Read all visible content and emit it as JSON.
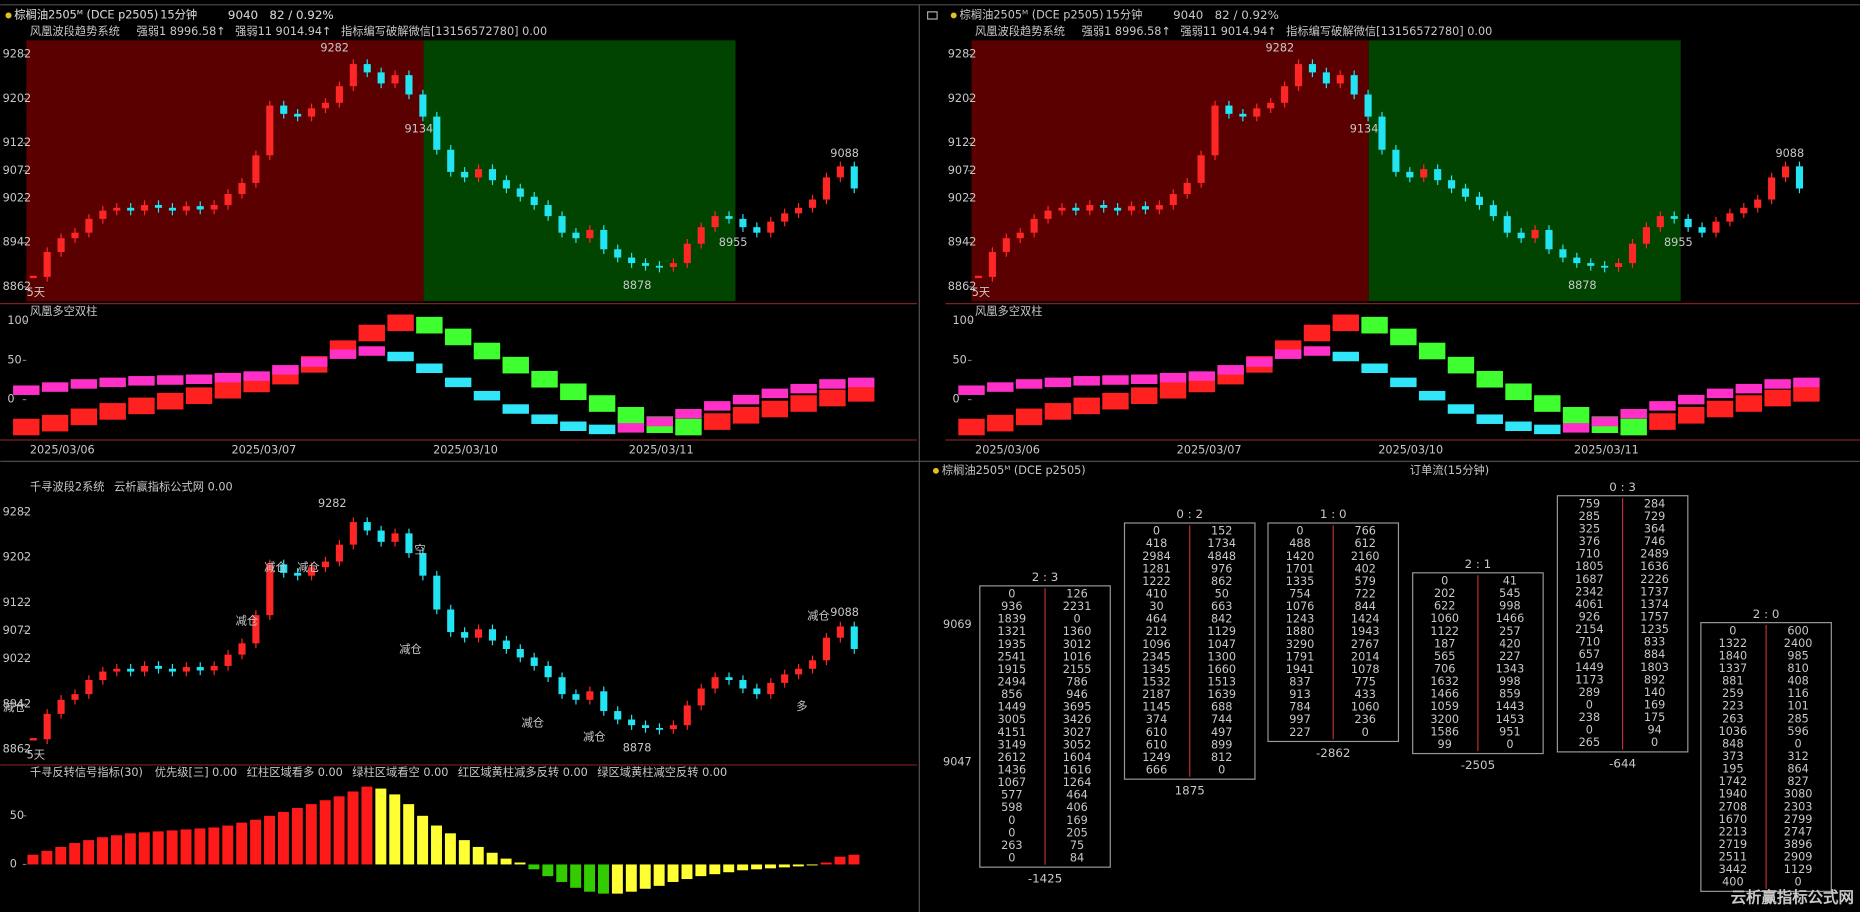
{
  "symbol": "棕榈油2505ᴹ (DCE p2505)",
  "period": "15分钟",
  "price": 9040,
  "change": "82 / 0.92%",
  "price_chart": {
    "type": "candlestick",
    "up_color": "#ff2626",
    "down_color": "#22e4f2",
    "closes": [
      8880,
      8925,
      8950,
      8960,
      8985,
      9000,
      9005,
      9000,
      9010,
      9005,
      9000,
      9008,
      9002,
      9010,
      9030,
      9050,
      9100,
      9190,
      9175,
      9170,
      9185,
      9195,
      9225,
      9265,
      9250,
      9230,
      9245,
      9210,
      9170,
      9110,
      9070,
      9060,
      9075,
      9055,
      9040,
      9025,
      9010,
      8990,
      8960,
      8950,
      8965,
      8930,
      8915,
      8905,
      8900,
      8898,
      8905,
      8940,
      8970,
      8990,
      8985,
      8970,
      8960,
      8980,
      8995,
      9005,
      9020,
      9060,
      9080,
      9040
    ],
    "ylim": [
      8836,
      9308
    ],
    "yticks": [
      9282,
      9202,
      9122,
      9072,
      9022,
      8942,
      8862
    ]
  },
  "trend_indicator": {
    "name": "风凰波段趋势系统",
    "items": [
      {
        "text": "强弱1 8996.58↑",
        "color": "#f0f0f0"
      },
      {
        "text": "强弱11 9014.94↑",
        "color": "#ffff40"
      },
      {
        "text": "指标编写破解微信[13156572780] 0.00",
        "color": "#a0a0a0"
      }
    ],
    "annotations": [
      {
        "text": 9282,
        "color": "#ff5a5a"
      },
      {
        "text": 9134,
        "color": "#40ff40"
      },
      {
        "text": 9088,
        "color": "#ff5a5a"
      },
      {
        "text": 8955,
        "color": "#ff5a5a"
      },
      {
        "text": 8878,
        "color": "#40e8f0"
      },
      {
        "text": "5天",
        "color": "#ff9020"
      }
    ]
  },
  "dual_bars": {
    "name": "风凰多空双柱",
    "ylim": [
      -50,
      121
    ],
    "yticks": [
      100,
      50,
      0
    ],
    "series": [
      {
        "rise_color": "#ff2020",
        "fall_color": "#40ff30",
        "values": [
          -35,
          -30,
          -22,
          -15,
          -8,
          -2,
          5,
          12,
          20,
          30,
          45,
          65,
          85,
          98,
          95,
          80,
          62,
          44,
          26,
          10,
          -5,
          -20,
          -32,
          -35,
          -28,
          -20,
          -12,
          -5,
          2,
          8
        ]
      },
      {
        "rise_color": "#ff30c8",
        "fall_color": "#30e6f8",
        "values": [
          12,
          16,
          20,
          22,
          24,
          25,
          26,
          28,
          30,
          38,
          48,
          58,
          62,
          55,
          40,
          22,
          5,
          -12,
          -25,
          -34,
          -38,
          -36,
          -28,
          -18,
          -8,
          0,
          8,
          14,
          20,
          22
        ]
      }
    ]
  },
  "dates": [
    "2025/03/06",
    "2025/03/07",
    "2025/03/10",
    "2025/03/11"
  ],
  "wave_chart": {
    "name": "千寻波段2系统",
    "items": [
      {
        "text": "云析赢指标公式网 0.00",
        "color": "#a0a0a0"
      }
    ],
    "ylim": [
      8845,
      9297
    ],
    "yticks": [
      9282,
      9202,
      9122,
      9072,
      9022,
      8942,
      8862
    ],
    "annotations": [
      {
        "text": 9282,
        "color": "#ff5a5a"
      },
      {
        "text": 9088,
        "color": "#ff5a5a"
      },
      {
        "text": 8878,
        "color": "#40e8f0"
      },
      {
        "text": "5天",
        "color": "#ff9020"
      },
      {
        "text": "减仓",
        "color": "#33dd33"
      },
      {
        "text": "减仓",
        "color": "#33dd33"
      },
      {
        "text": "减仓",
        "color": "#33dd33"
      },
      {
        "text": "减仓",
        "color": "#ffcc00"
      },
      {
        "text": "空",
        "color": "#33dd33"
      },
      {
        "text": "减仓",
        "color": "#ffcc00"
      },
      {
        "text": "减仓",
        "color": "#ffcc00"
      },
      {
        "text": "减仓",
        "color": "#ffcc00"
      },
      {
        "text": "减仓",
        "color": "#33dd33"
      },
      {
        "text": "多",
        "color": "#ffcc00"
      }
    ]
  },
  "reversal": {
    "name": "千寻反转信号指标(30)",
    "items": [
      {
        "text": "优先级[三] 0.00",
        "color": "#ffff40"
      },
      {
        "text": "红柱区域看多 0.00",
        "color": "#ff3030"
      },
      {
        "text": "绿柱区域看空 0.00",
        "color": "#30e030"
      },
      {
        "text": "红区域黄柱减多反转 0.00",
        "color": "#ffff40"
      },
      {
        "text": "绿区域黄柱减空反转 0.00",
        "color": "#ffff40"
      }
    ],
    "ylim": [
      -44,
      84
    ],
    "yticks": [
      50,
      0
    ],
    "up_color": "#ff1a1a",
    "fade_color": "#ffff33",
    "down_color": "#33cc00",
    "values": [
      10,
      14,
      18,
      22,
      25,
      28,
      30,
      32,
      33,
      34,
      35,
      36,
      37,
      38,
      40,
      43,
      46,
      50,
      54,
      58,
      62,
      66,
      70,
      75,
      80,
      78,
      72,
      62,
      50,
      40,
      32,
      25,
      18,
      12,
      6,
      2,
      -5,
      -12,
      -18,
      -24,
      -28,
      -30,
      -30,
      -28,
      -25,
      -22,
      -18,
      -15,
      -12,
      -10,
      -8,
      -6,
      -5,
      -4,
      -3,
      -2,
      -1,
      2,
      8,
      10
    ]
  },
  "order_flow": {
    "title": "订单流(15分钟)",
    "price_labels": [
      9069,
      9047
    ],
    "tables": [
      {
        "title": "2 : 3",
        "total": -1425,
        "rows": [
          [
            0,
            126
          ],
          [
            936,
            2231
          ],
          [
            1839,
            0
          ],
          [
            1321,
            1360
          ],
          [
            1935,
            3012
          ],
          [
            2541,
            1016
          ],
          [
            1915,
            2155
          ],
          [
            2494,
            786
          ],
          [
            856,
            946
          ],
          [
            1449,
            3695
          ],
          [
            3005,
            3426
          ],
          [
            4151,
            3027
          ],
          [
            3149,
            3052
          ],
          [
            2612,
            1604
          ],
          [
            1436,
            1616
          ],
          [
            1067,
            1264
          ],
          [
            577,
            464
          ],
          [
            598,
            406
          ],
          [
            0,
            169
          ],
          [
            0,
            205
          ],
          [
            263,
            75
          ],
          [
            0,
            84
          ]
        ]
      },
      {
        "title": "0 : 2",
        "total": 1875,
        "rows": [
          [
            0,
            152
          ],
          [
            418,
            1734
          ],
          [
            2984,
            4848
          ],
          [
            1281,
            976
          ],
          [
            1222,
            862
          ],
          [
            410,
            50
          ],
          [
            30,
            663
          ],
          [
            464,
            842
          ],
          [
            212,
            1129
          ],
          [
            1096,
            1047
          ],
          [
            2345,
            1300
          ],
          [
            1345,
            1660
          ],
          [
            1532,
            1513
          ],
          [
            2187,
            1639
          ],
          [
            1145,
            688
          ],
          [
            374,
            744
          ],
          [
            610,
            497
          ],
          [
            610,
            899
          ],
          [
            1249,
            812
          ],
          [
            666,
            0
          ]
        ]
      },
      {
        "title": "1 : 0",
        "total": -2862,
        "rows": [
          [
            0,
            766
          ],
          [
            488,
            612
          ],
          [
            1420,
            2160
          ],
          [
            1701,
            402
          ],
          [
            1335,
            579
          ],
          [
            754,
            722
          ],
          [
            1076,
            844
          ],
          [
            1243,
            1424
          ],
          [
            1880,
            1943
          ],
          [
            3290,
            2767
          ],
          [
            1791,
            2014
          ],
          [
            1941,
            1078
          ],
          [
            837,
            775
          ],
          [
            913,
            433
          ],
          [
            784,
            1060
          ],
          [
            997,
            236
          ],
          [
            227,
            0
          ]
        ]
      },
      {
        "title": "2 : 1",
        "total": -2505,
        "rows": [
          [
            0,
            41
          ],
          [
            202,
            545
          ],
          [
            622,
            998
          ],
          [
            1060,
            1466
          ],
          [
            1122,
            257
          ],
          [
            187,
            420
          ],
          [
            565,
            227
          ],
          [
            706,
            1343
          ],
          [
            1632,
            998
          ],
          [
            1466,
            859
          ],
          [
            1059,
            1443
          ],
          [
            3200,
            1453
          ],
          [
            1586,
            951
          ],
          [
            99,
            0
          ]
        ]
      },
      {
        "title": "0 : 3",
        "total": -644,
        "rows": [
          [
            759,
            284
          ],
          [
            285,
            729
          ],
          [
            325,
            364
          ],
          [
            376,
            746
          ],
          [
            710,
            2489
          ],
          [
            1805,
            1636
          ],
          [
            1687,
            2226
          ],
          [
            2342,
            1737
          ],
          [
            4061,
            1374
          ],
          [
            926,
            1757
          ],
          [
            2154,
            1235
          ],
          [
            710,
            833
          ],
          [
            657,
            884
          ],
          [
            1449,
            1803
          ],
          [
            1173,
            892
          ],
          [
            289,
            140
          ],
          [
            0,
            169
          ],
          [
            238,
            175
          ],
          [
            0,
            94
          ],
          [
            265,
            0
          ]
        ]
      },
      {
        "title": "2 : 0",
        "rows": [
          [
            0,
            600
          ],
          [
            1322,
            2400
          ],
          [
            1840,
            985
          ],
          [
            1337,
            810
          ],
          [
            881,
            408
          ],
          [
            259,
            116
          ],
          [
            223,
            101
          ],
          [
            263,
            285
          ],
          [
            1036,
            596
          ],
          [
            848,
            0
          ],
          [
            373,
            312
          ],
          [
            195,
            864
          ],
          [
            1742,
            827
          ],
          [
            1940,
            3080
          ],
          [
            2708,
            2303
          ],
          [
            1670,
            2799
          ],
          [
            2213,
            2747
          ],
          [
            2719,
            3896
          ],
          [
            2511,
            2909
          ],
          [
            3442,
            1129
          ],
          [
            400,
            0
          ]
        ]
      }
    ]
  },
  "watermark": "云析赢指标公式网"
}
